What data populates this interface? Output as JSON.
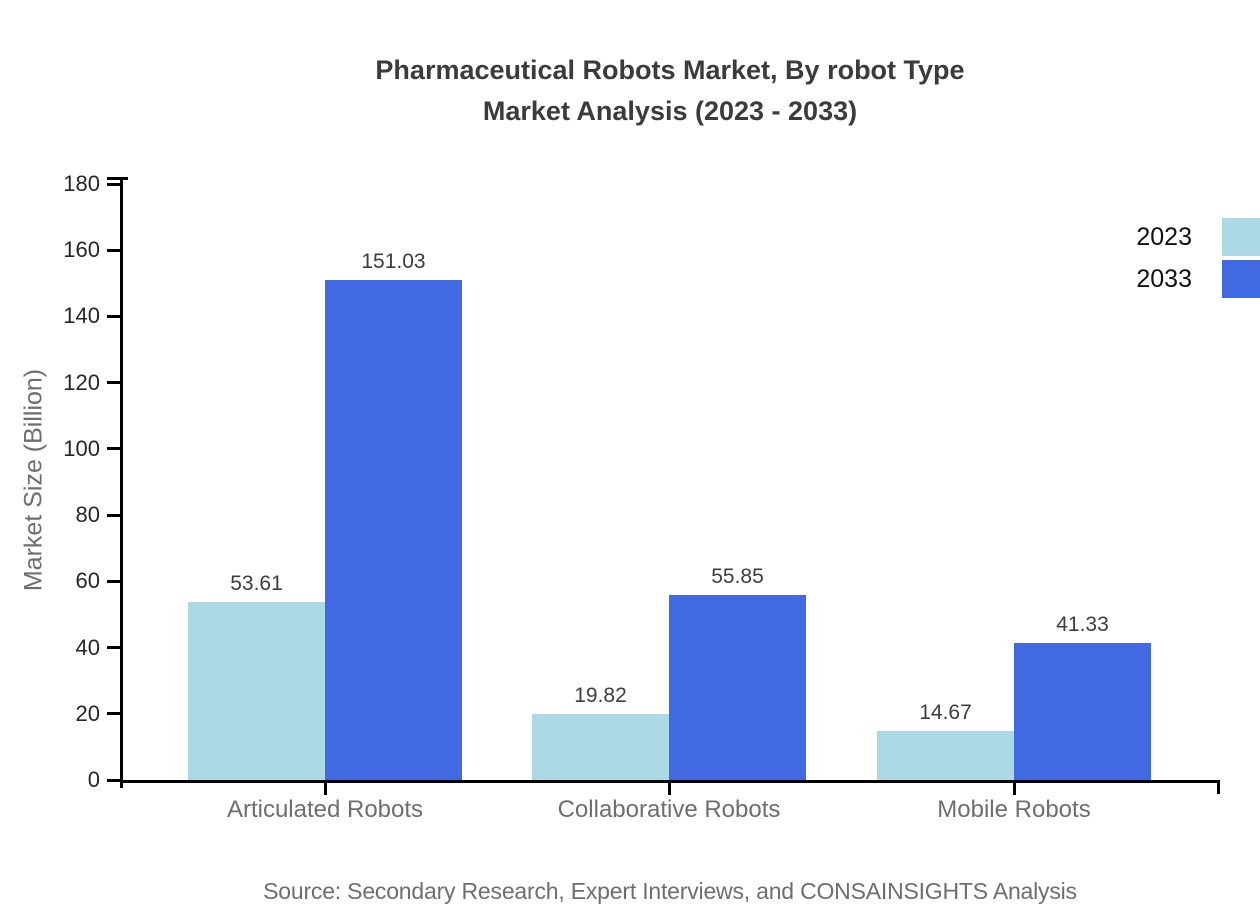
{
  "title": {
    "line1": "Pharmaceutical Robots Market, By robot Type",
    "line2": "Market Analysis (2023 - 2033)"
  },
  "chart_data": {
    "type": "bar",
    "title": "Pharmaceutical Robots Market, By robot Type — Market Analysis (2023 - 2033)",
    "categories": [
      "Articulated Robots",
      "Collaborative Robots",
      "Mobile Robots"
    ],
    "series": [
      {
        "name": "2023",
        "color": "#add8e6",
        "values": [
          53.61,
          19.82,
          14.67
        ]
      },
      {
        "name": "2033",
        "color": "#4169e1",
        "values": [
          151.03,
          55.85,
          41.33
        ]
      }
    ],
    "xlabel": "",
    "ylabel": "Market Size (Billion)",
    "ylim": [
      0,
      180
    ],
    "ytick_step": 20,
    "yticks": [
      0,
      20,
      40,
      60,
      80,
      100,
      120,
      140,
      160,
      180
    ],
    "grid": false,
    "legend_position": "top-right",
    "value_label_decimals": 2
  },
  "colors": {
    "series_2023": "#add8e6",
    "series_2033": "#4169e1",
    "axis": "#000000",
    "title_text": "#3b3b3b",
    "value_label_text": "#3d3d3d",
    "muted_text": "#6e6e6e"
  },
  "source": "Source: Secondary Research, Expert Interviews, and CONSAINSIGHTS Analysis"
}
